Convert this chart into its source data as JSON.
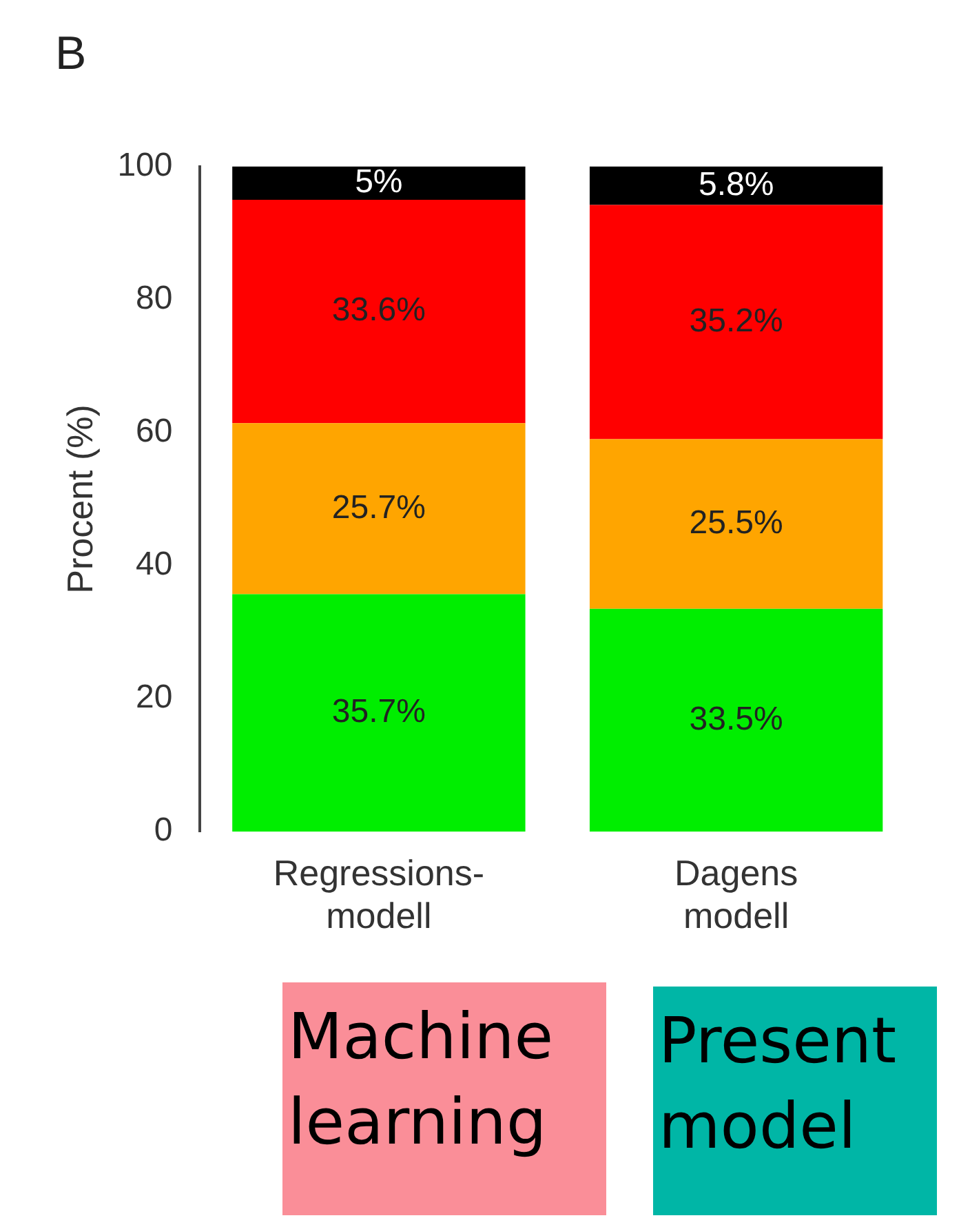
{
  "chart_data": {
    "type": "bar",
    "title": "B",
    "ylabel": "Procent (%)",
    "stacked": true,
    "categories": [
      "Regressions-\nmodell",
      "Dagens\nmodell"
    ],
    "series": [
      {
        "color": "#00ee00",
        "values": [
          35.7,
          33.5
        ],
        "value_labels": [
          "35.7%",
          "33.5%"
        ]
      },
      {
        "color": "#ffa500",
        "values": [
          25.7,
          25.5
        ],
        "value_labels": [
          "25.7%",
          "25.5%"
        ]
      },
      {
        "color": "#ff0000",
        "values": [
          33.6,
          35.2
        ],
        "value_labels": [
          "33.6%",
          "35.2%"
        ]
      },
      {
        "color": "#000000",
        "values": [
          5,
          5.8
        ],
        "value_labels": [
          "5%",
          "5.8%"
        ]
      }
    ],
    "ylim": [
      0,
      100
    ],
    "yticks": [
      0,
      20,
      40,
      60,
      80,
      100
    ],
    "grid": false,
    "legend": false,
    "annotations": [
      "Machine learning",
      "Present model"
    ]
  }
}
